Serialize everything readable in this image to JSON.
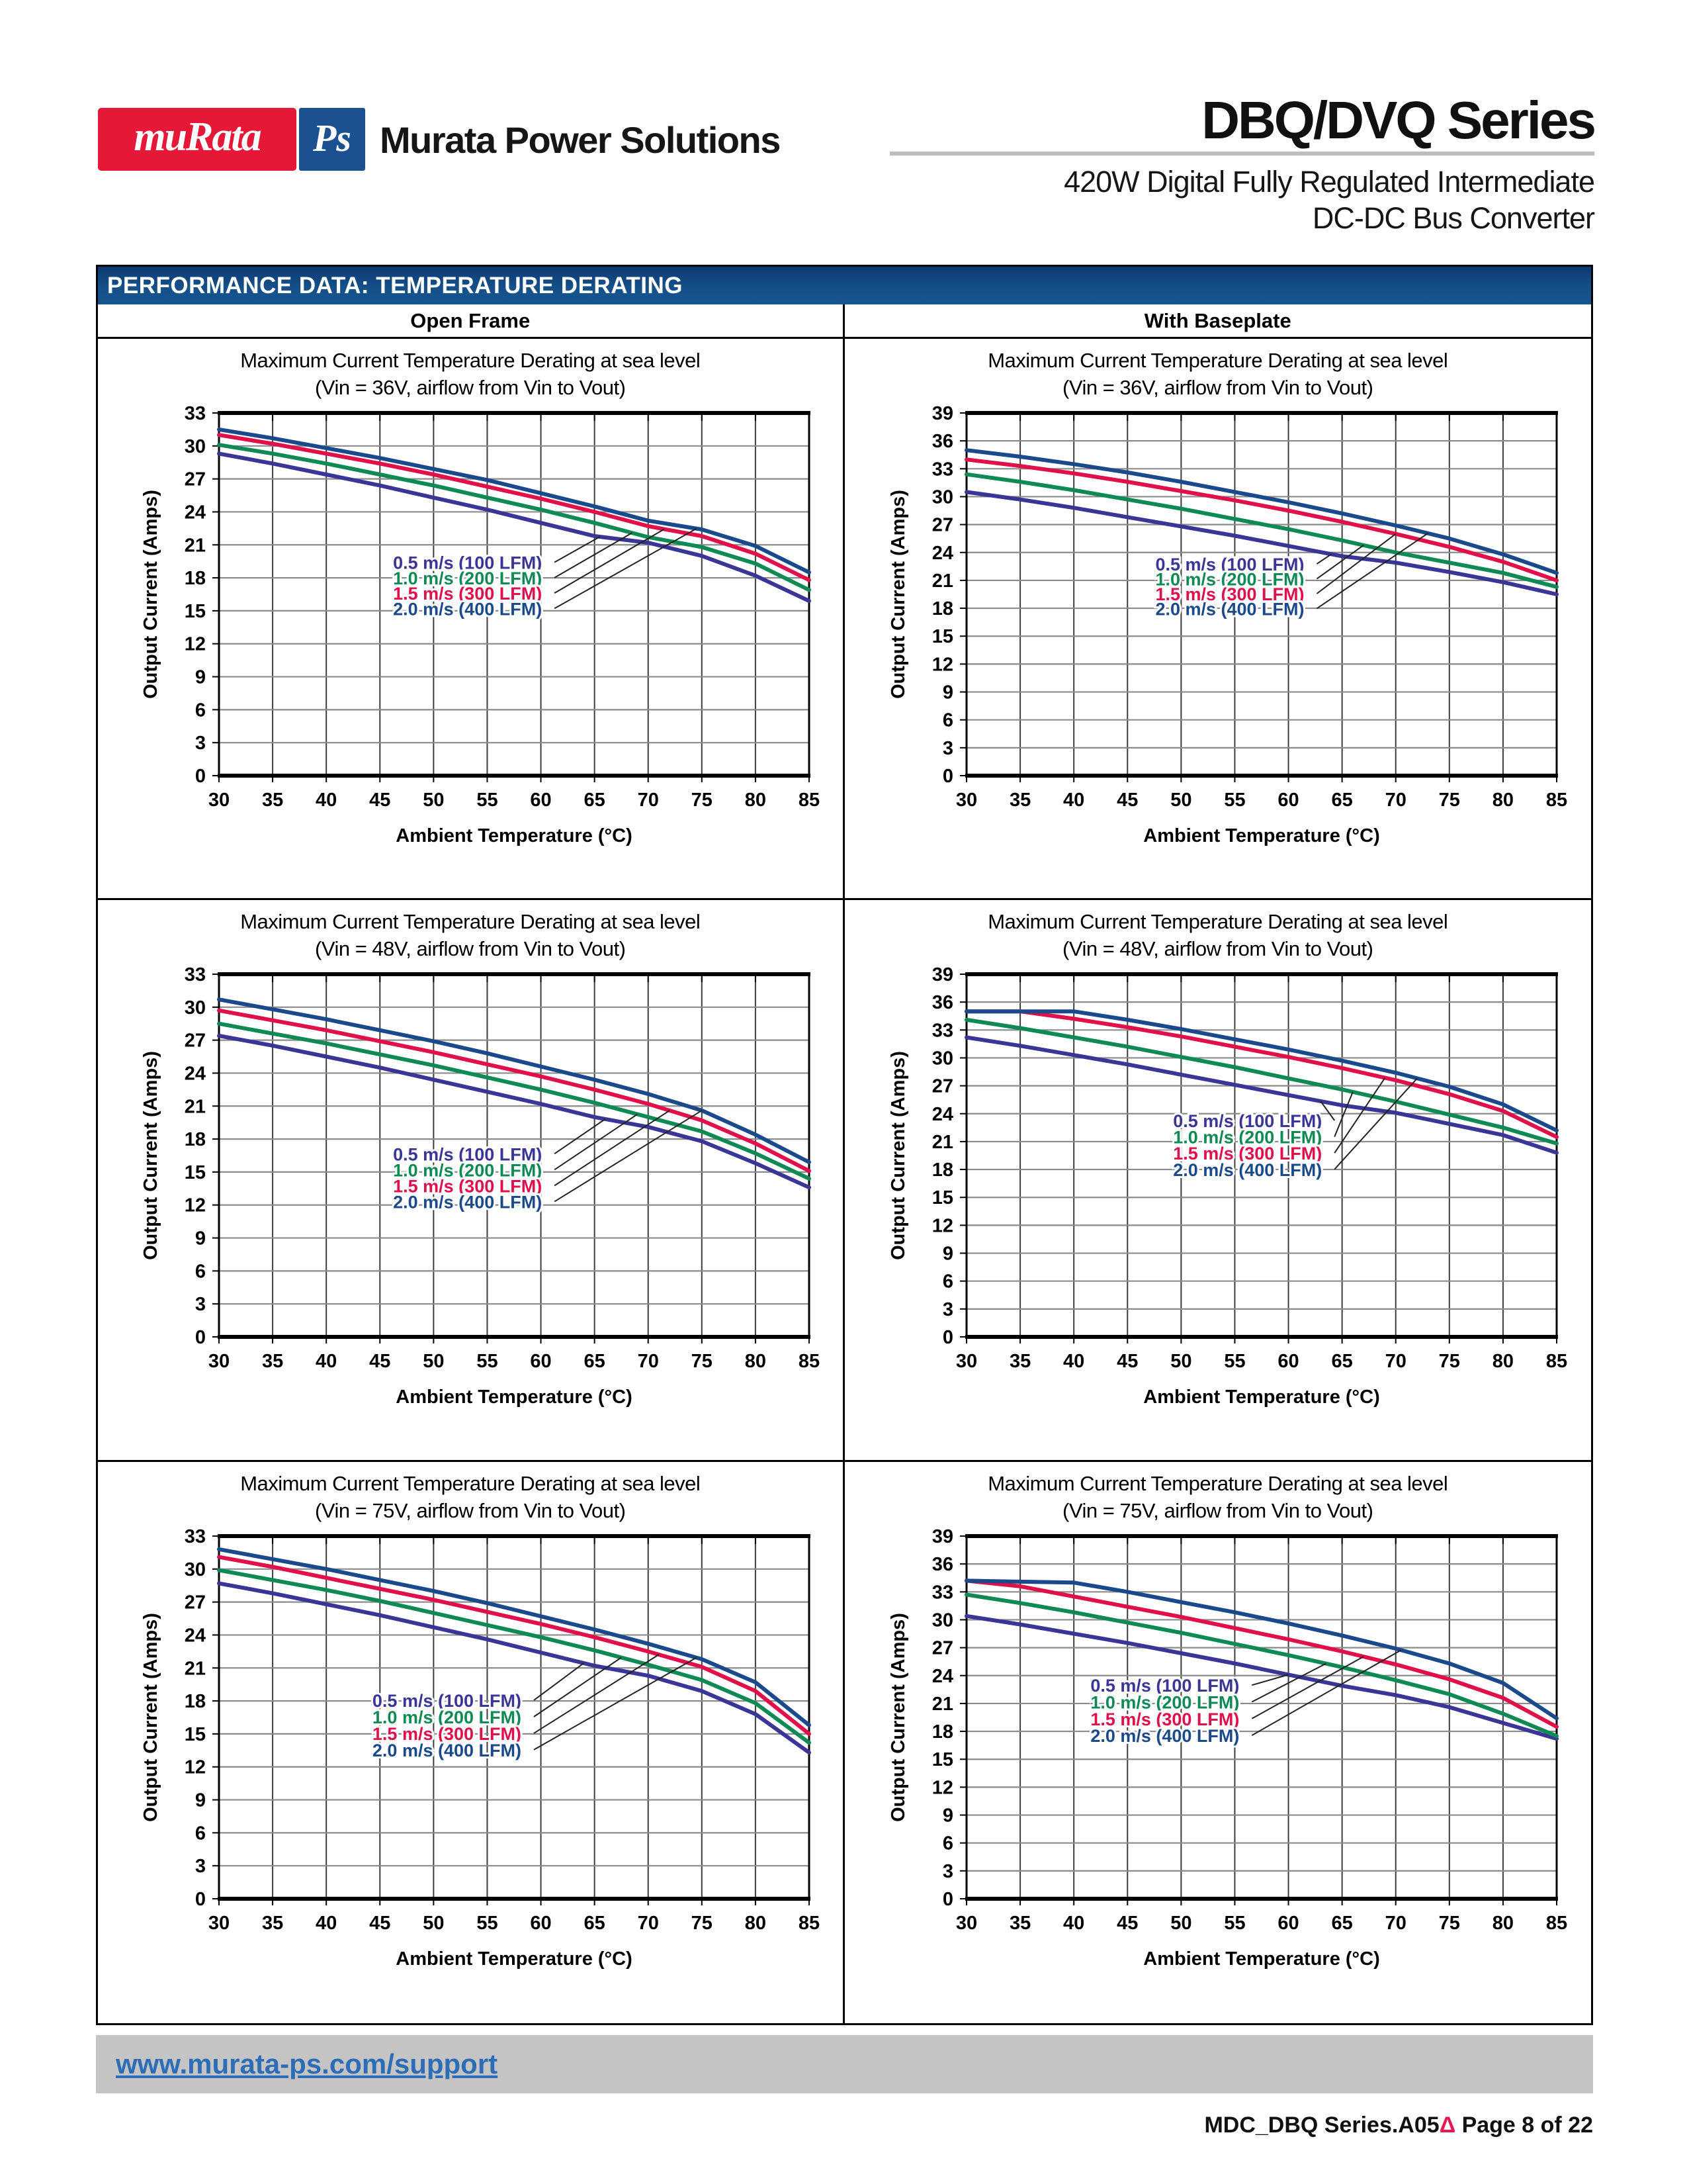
{
  "colors": {
    "logo_red": "#e51937",
    "logo_blue": "#1b5091",
    "header_bar_blue": "#134a82",
    "link_blue": "#2d6db5",
    "delta_red": "#e41a57",
    "series_purple": "#3a3597",
    "series_green": "#0f8a55",
    "series_red": "#e0104a",
    "series_blue": "#1a4a8c"
  },
  "logo": {
    "murata": "muRata",
    "ps": "Ps",
    "company": "Murata Power Solutions"
  },
  "masthead": {
    "series_title": "DBQ/DVQ Series",
    "subtitle1": "420W Digital Fully Regulated Intermediate",
    "subtitle2": "DC-DC Bus Converter"
  },
  "section": {
    "header": "PERFORMANCE DATA: TEMPERATURE DERATING",
    "columns": [
      "Open Frame",
      "With Baseplate"
    ]
  },
  "footer": {
    "link": "www.murata-ps.com/support"
  },
  "pagefoot": {
    "doc_ref": "MDC_DBQ Series.A05",
    "delta": "Δ",
    "page": " Page 8 of 22"
  },
  "chart_data": [
    {
      "type": "line",
      "column": "Open Frame",
      "title": "Maximum Current Temperature Derating at sea level",
      "subtitle": "(Vin = 36V, airflow from Vin to Vout)",
      "xlabel": "Ambient Temperature (°C)",
      "ylabel": "Output Current (Amps)",
      "xlim": [
        30,
        85
      ],
      "ylim": [
        0,
        33
      ],
      "x_ticks": [
        30,
        35,
        40,
        45,
        50,
        55,
        60,
        65,
        70,
        75,
        80,
        85
      ],
      "y_ticks": [
        0,
        3,
        6,
        9,
        12,
        15,
        18,
        21,
        24,
        27,
        30,
        33
      ],
      "grid": true,
      "x": [
        30,
        35,
        40,
        45,
        50,
        55,
        60,
        65,
        70,
        75,
        80,
        85
      ],
      "series": [
        {
          "name": "0.5 m/s (100 LFM)",
          "color": "#3a3597",
          "values": [
            29.3,
            28.4,
            27.4,
            26.4,
            25.3,
            24.2,
            23.0,
            21.8,
            21.2,
            20.0,
            18.2,
            15.9
          ]
        },
        {
          "name": "1.0 m/s (200 LFM)",
          "color": "#0f8a55",
          "values": [
            30.1,
            29.3,
            28.4,
            27.4,
            26.4,
            25.3,
            24.2,
            23.0,
            21.7,
            20.8,
            19.3,
            16.9
          ]
        },
        {
          "name": "1.5 m/s (300 LFM)",
          "color": "#e0104a",
          "values": [
            31.0,
            30.2,
            29.3,
            28.4,
            27.4,
            26.3,
            25.2,
            24.0,
            22.7,
            21.8,
            20.2,
            17.8
          ]
        },
        {
          "name": "2.0 m/s (400 LFM)",
          "color": "#1a4a8c",
          "values": [
            31.5,
            30.7,
            29.8,
            28.9,
            27.9,
            26.9,
            25.7,
            24.5,
            23.2,
            22.4,
            20.9,
            18.5
          ]
        }
      ],
      "legend": {
        "fx": 0.295,
        "rows_y": [
          19.35,
          17.95,
          16.55,
          15.15
        ],
        "leader_x": [
          65.5,
          68.5,
          71.5,
          74.5
        ]
      }
    },
    {
      "type": "line",
      "column": "With Baseplate",
      "title": "Maximum Current Temperature Derating at sea level",
      "subtitle": "(Vin = 36V, airflow from Vin to Vout)",
      "xlabel": "Ambient Temperature (°C)",
      "ylabel": "Output Current (Amps)",
      "xlim": [
        30,
        85
      ],
      "ylim": [
        0,
        39
      ],
      "x_ticks": [
        30,
        35,
        40,
        45,
        50,
        55,
        60,
        65,
        70,
        75,
        80,
        85
      ],
      "y_ticks": [
        0,
        3,
        6,
        9,
        12,
        15,
        18,
        21,
        24,
        27,
        30,
        33,
        36,
        39
      ],
      "grid": true,
      "x": [
        30,
        35,
        40,
        45,
        50,
        55,
        60,
        65,
        70,
        75,
        80,
        85
      ],
      "series": [
        {
          "name": "0.5 m/s (100 LFM)",
          "color": "#3a3597",
          "values": [
            30.5,
            29.7,
            28.8,
            27.8,
            26.8,
            25.8,
            24.7,
            23.6,
            22.9,
            21.9,
            20.8,
            19.5
          ]
        },
        {
          "name": "1.0 m/s (200 LFM)",
          "color": "#0f8a55",
          "values": [
            32.4,
            31.6,
            30.7,
            29.7,
            28.7,
            27.6,
            26.5,
            25.3,
            24.0,
            22.9,
            21.8,
            20.3
          ]
        },
        {
          "name": "1.5 m/s (300 LFM)",
          "color": "#e0104a",
          "values": [
            34.0,
            33.3,
            32.5,
            31.6,
            30.6,
            29.6,
            28.5,
            27.3,
            26.0,
            24.6,
            23.0,
            21.0
          ]
        },
        {
          "name": "2.0 m/s (400 LFM)",
          "color": "#1a4a8c",
          "values": [
            35.0,
            34.3,
            33.5,
            32.6,
            31.6,
            30.5,
            29.4,
            28.2,
            26.9,
            25.5,
            23.8,
            21.8
          ]
        }
      ],
      "legend": {
        "fx": 0.32,
        "rows_y": [
          22.7,
          21.1,
          19.5,
          17.9
        ],
        "leader_x": [
          64,
          67,
          70,
          73
        ]
      }
    },
    {
      "type": "line",
      "column": "Open Frame",
      "title": "Maximum Current Temperature Derating at sea level",
      "subtitle": "(Vin = 48V, airflow from Vin to Vout)",
      "xlabel": "Ambient Temperature (°C)",
      "ylabel": "Output Current (Amps)",
      "xlim": [
        30,
        85
      ],
      "ylim": [
        0,
        33
      ],
      "x_ticks": [
        30,
        35,
        40,
        45,
        50,
        55,
        60,
        65,
        70,
        75,
        80,
        85
      ],
      "y_ticks": [
        0,
        3,
        6,
        9,
        12,
        15,
        18,
        21,
        24,
        27,
        30,
        33
      ],
      "grid": true,
      "x": [
        30,
        35,
        40,
        45,
        50,
        55,
        60,
        65,
        70,
        75,
        80,
        85
      ],
      "series": [
        {
          "name": "0.5 m/s (100 LFM)",
          "color": "#3a3597",
          "values": [
            27.4,
            26.5,
            25.5,
            24.5,
            23.4,
            22.3,
            21.2,
            20.0,
            19.1,
            17.8,
            15.8,
            13.6
          ]
        },
        {
          "name": "1.0 m/s (200 LFM)",
          "color": "#0f8a55",
          "values": [
            28.5,
            27.6,
            26.7,
            25.7,
            24.7,
            23.6,
            22.5,
            21.3,
            20.0,
            18.7,
            16.7,
            14.4
          ]
        },
        {
          "name": "1.5 m/s (300 LFM)",
          "color": "#e0104a",
          "values": [
            29.7,
            28.8,
            27.9,
            26.9,
            25.9,
            24.8,
            23.7,
            22.5,
            21.2,
            19.7,
            17.6,
            15.1
          ]
        },
        {
          "name": "2.0 m/s (400 LFM)",
          "color": "#1a4a8c",
          "values": [
            30.7,
            29.8,
            28.9,
            27.9,
            26.9,
            25.8,
            24.6,
            23.4,
            22.1,
            20.6,
            18.4,
            15.9
          ]
        }
      ],
      "legend": {
        "fx": 0.295,
        "rows_y": [
          16.6,
          15.15,
          13.7,
          12.25
        ],
        "leader_x": [
          66,
          69,
          72,
          75
        ]
      }
    },
    {
      "type": "line",
      "column": "With Baseplate",
      "title": "Maximum Current Temperature Derating at sea level",
      "subtitle": "(Vin = 48V, airflow from Vin to Vout)",
      "xlabel": "Ambient Temperature (°C)",
      "ylabel": "Output Current (Amps)",
      "xlim": [
        30,
        85
      ],
      "ylim": [
        0,
        39
      ],
      "x_ticks": [
        30,
        35,
        40,
        45,
        50,
        55,
        60,
        65,
        70,
        75,
        80,
        85
      ],
      "y_ticks": [
        0,
        3,
        6,
        9,
        12,
        15,
        18,
        21,
        24,
        27,
        30,
        33,
        36,
        39
      ],
      "grid": true,
      "x": [
        30,
        35,
        40,
        45,
        50,
        55,
        60,
        65,
        70,
        75,
        80,
        85
      ],
      "series": [
        {
          "name": "0.5 m/s (100 LFM)",
          "color": "#3a3597",
          "values": [
            32.2,
            31.3,
            30.3,
            29.3,
            28.2,
            27.1,
            26.0,
            24.9,
            24.1,
            22.9,
            21.7,
            19.8
          ]
        },
        {
          "name": "1.0 m/s (200 LFM)",
          "color": "#0f8a55",
          "values": [
            34.1,
            33.2,
            32.2,
            31.2,
            30.1,
            29.0,
            27.8,
            26.6,
            25.3,
            23.9,
            22.5,
            20.8
          ]
        },
        {
          "name": "1.5 m/s (300 LFM)",
          "color": "#e0104a",
          "values": [
            35.0,
            35.0,
            34.2,
            33.3,
            32.3,
            31.2,
            30.1,
            28.9,
            27.6,
            26.1,
            24.3,
            21.5
          ]
        },
        {
          "name": "2.0 m/s (400 LFM)",
          "color": "#1a4a8c",
          "values": [
            35.0,
            35.0,
            35.0,
            34.1,
            33.1,
            32.0,
            30.9,
            29.7,
            28.4,
            26.9,
            25.0,
            22.2
          ]
        }
      ],
      "legend": {
        "fx": 0.35,
        "rows_y": [
          23.2,
          21.45,
          19.7,
          17.95
        ],
        "leader_x": [
          63,
          66,
          69,
          72
        ]
      }
    },
    {
      "type": "line",
      "column": "Open Frame",
      "title": "Maximum Current Temperature Derating at sea level",
      "subtitle": "(Vin = 75V, airflow from Vin to Vout)",
      "xlabel": "Ambient Temperature (°C)",
      "ylabel": "Output Current (Amps)",
      "xlim": [
        30,
        85
      ],
      "ylim": [
        0,
        33
      ],
      "x_ticks": [
        30,
        35,
        40,
        45,
        50,
        55,
        60,
        65,
        70,
        75,
        80,
        85
      ],
      "y_ticks": [
        0,
        3,
        6,
        9,
        12,
        15,
        18,
        21,
        24,
        27,
        30,
        33
      ],
      "grid": true,
      "x": [
        30,
        35,
        40,
        45,
        50,
        55,
        60,
        65,
        70,
        75,
        80,
        85
      ],
      "series": [
        {
          "name": "0.5 m/s (100 LFM)",
          "color": "#3a3597",
          "values": [
            28.7,
            27.8,
            26.8,
            25.8,
            24.7,
            23.6,
            22.4,
            21.2,
            20.3,
            18.9,
            16.8,
            13.3
          ]
        },
        {
          "name": "1.0 m/s (200 LFM)",
          "color": "#0f8a55",
          "values": [
            29.9,
            29.0,
            28.1,
            27.1,
            26.0,
            24.9,
            23.8,
            22.6,
            21.3,
            19.9,
            17.8,
            14.2
          ]
        },
        {
          "name": "1.5 m/s (300 LFM)",
          "color": "#e0104a",
          "values": [
            31.1,
            30.2,
            29.2,
            28.2,
            27.2,
            26.1,
            25.0,
            23.8,
            22.5,
            21.1,
            18.9,
            15.0
          ]
        },
        {
          "name": "2.0 m/s (400 LFM)",
          "color": "#1a4a8c",
          "values": [
            31.8,
            30.9,
            30.0,
            29.0,
            28.0,
            26.9,
            25.7,
            24.5,
            23.2,
            21.8,
            19.7,
            15.8
          ]
        }
      ],
      "legend": {
        "fx": 0.26,
        "rows_y": [
          18.0,
          16.5,
          15.0,
          13.5
        ],
        "leader_x": [
          64,
          67.5,
          71,
          74.5
        ]
      }
    },
    {
      "type": "line",
      "column": "With Baseplate",
      "title": "Maximum Current Temperature Derating at sea level",
      "subtitle": "(Vin = 75V, airflow from Vin to Vout)",
      "xlabel": "Ambient Temperature (°C)",
      "ylabel": "Output Current (Amps)",
      "xlim": [
        30,
        85
      ],
      "ylim": [
        0,
        39
      ],
      "x_ticks": [
        30,
        35,
        40,
        45,
        50,
        55,
        60,
        65,
        70,
        75,
        80,
        85
      ],
      "y_ticks": [
        0,
        3,
        6,
        9,
        12,
        15,
        18,
        21,
        24,
        27,
        30,
        33,
        36,
        39
      ],
      "grid": true,
      "x": [
        30,
        35,
        40,
        45,
        50,
        55,
        60,
        65,
        70,
        75,
        80,
        85
      ],
      "series": [
        {
          "name": "0.5 m/s (100 LFM)",
          "color": "#3a3597",
          "values": [
            30.4,
            29.5,
            28.5,
            27.5,
            26.4,
            25.3,
            24.1,
            22.9,
            21.9,
            20.6,
            18.9,
            17.2
          ]
        },
        {
          "name": "1.0 m/s (200 LFM)",
          "color": "#0f8a55",
          "values": [
            32.7,
            31.8,
            30.8,
            29.7,
            28.6,
            27.4,
            26.2,
            24.9,
            23.5,
            22.0,
            19.9,
            17.5
          ]
        },
        {
          "name": "1.5 m/s (300 LFM)",
          "color": "#e0104a",
          "values": [
            34.2,
            33.6,
            32.5,
            31.4,
            30.3,
            29.1,
            27.9,
            26.6,
            25.2,
            23.6,
            21.6,
            18.5
          ]
        },
        {
          "name": "2.0 m/s (400 LFM)",
          "color": "#1a4a8c",
          "values": [
            34.2,
            34.1,
            34.0,
            33.0,
            31.9,
            30.8,
            29.6,
            28.3,
            26.9,
            25.3,
            23.2,
            19.4
          ]
        }
      ],
      "legend": {
        "fx": 0.21,
        "rows_y": [
          22.9,
          21.1,
          19.3,
          17.5
        ],
        "leader_x": [
          60,
          63.5,
          67,
          70.5
        ]
      }
    }
  ]
}
